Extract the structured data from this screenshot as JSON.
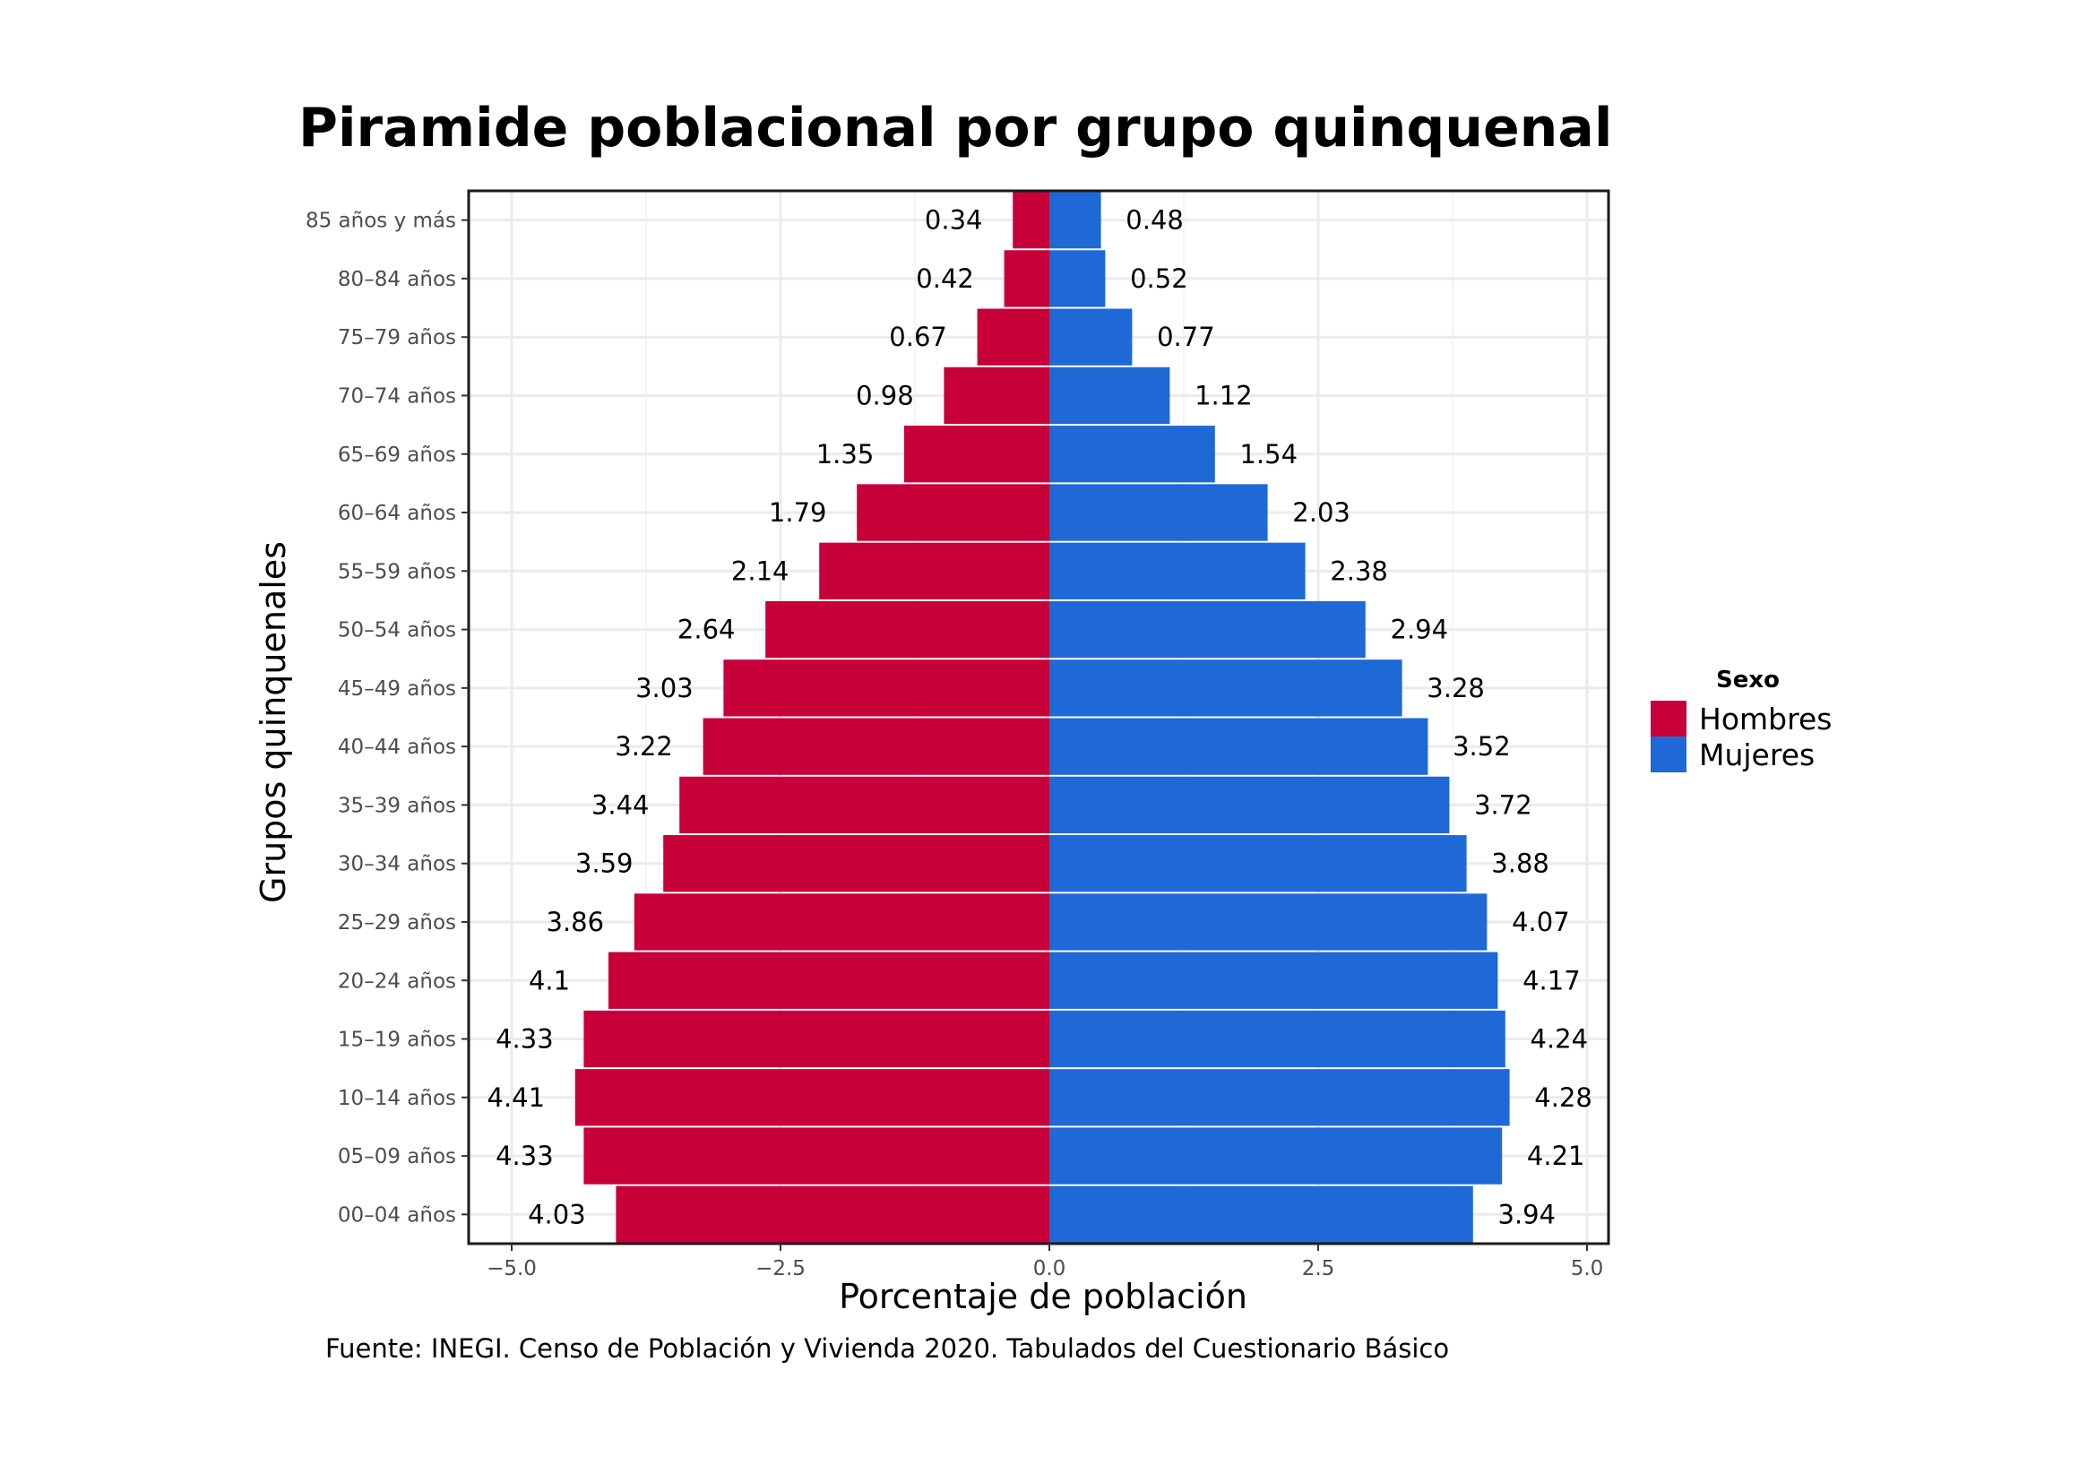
{
  "chart_data": {
    "type": "bar",
    "orientation": "horizontal",
    "title": "Piramide poblacional por grupo quinquenal",
    "xlabel": "Porcentaje de población",
    "ylabel": "Grupos quinquenales",
    "caption": "Fuente: INEGI. Censo de Población y Vivienda 2020. Tabulados del Cuestionario Básico",
    "xlim": [
      -5.4,
      5.2
    ],
    "xticks": [
      -5.0,
      -2.5,
      0.0,
      2.5,
      5.0
    ],
    "xtick_labels": [
      "−5.0",
      "−2.5",
      "0.0",
      "2.5",
      "5.0"
    ],
    "grid": true,
    "legend": {
      "title": "Sexo",
      "position": "right"
    },
    "categories": [
      "00–04 años",
      "05–09 años",
      "10–14 años",
      "15–19 años",
      "20–24 años",
      "25–29 años",
      "30–34 años",
      "35–39 años",
      "40–44 años",
      "45–49 años",
      "50–54 años",
      "55–59 años",
      "60–64 años",
      "65–69 años",
      "70–74 años",
      "75–79 años",
      "80–84 años",
      "85 años y más"
    ],
    "series": [
      {
        "name": "Hombres",
        "color": "#C70039",
        "values": [
          4.03,
          4.33,
          4.41,
          4.33,
          4.1,
          3.86,
          3.59,
          3.44,
          3.22,
          3.03,
          2.64,
          2.14,
          1.79,
          1.35,
          0.98,
          0.67,
          0.42,
          0.34
        ],
        "labels": [
          "4.03",
          "4.33",
          "4.41",
          "4.33",
          "4.1",
          "3.86",
          "3.59",
          "3.44",
          "3.22",
          "3.03",
          "2.64",
          "2.14",
          "1.79",
          "1.35",
          "0.98",
          "0.67",
          "0.42",
          "0.34"
        ]
      },
      {
        "name": "Mujeres",
        "color": "#1F69D6",
        "values": [
          3.94,
          4.21,
          4.28,
          4.24,
          4.17,
          4.07,
          3.88,
          3.72,
          3.52,
          3.28,
          2.94,
          2.38,
          2.03,
          1.54,
          1.12,
          0.77,
          0.52,
          0.48
        ],
        "labels": [
          "3.94",
          "4.21",
          "4.28",
          "4.24",
          "4.17",
          "4.07",
          "3.88",
          "3.72",
          "3.52",
          "3.28",
          "2.94",
          "2.38",
          "2.03",
          "1.54",
          "1.12",
          "0.77",
          "0.52",
          "0.48"
        ]
      }
    ]
  }
}
